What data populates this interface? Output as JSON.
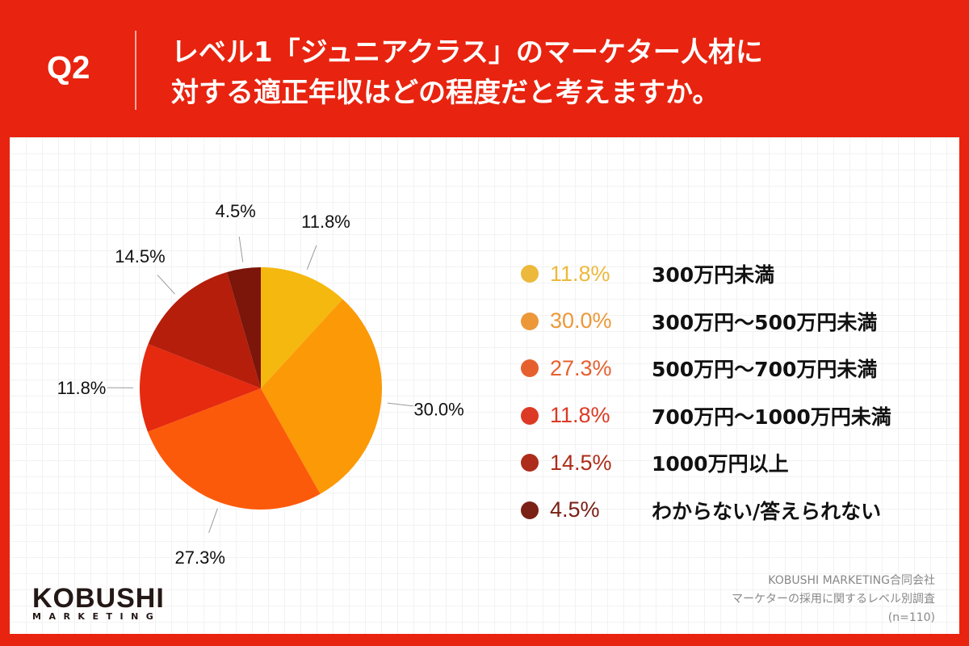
{
  "header": {
    "q": "Q2",
    "title": "レベル1「ジュニアクラス」のマーケター人材に\n対する適正年収はどの程度だと考えますか。"
  },
  "chart_data": {
    "type": "pie",
    "start": "top",
    "direction": "clockwise",
    "categories": [
      "300万円未満",
      "300万円〜500万円未満",
      "500万円〜700万円未満",
      "700万円〜1000万円未満",
      "1000万円以上",
      "わからない/答えられない"
    ],
    "values": [
      11.8,
      30.0,
      27.3,
      11.8,
      14.5,
      4.5
    ],
    "labels": [
      "11.8%",
      "30.0%",
      "27.3%",
      "11.8%",
      "14.5%",
      "4.5%"
    ],
    "colors": [
      "#f5b80f",
      "#fb9906",
      "#fc5a0b",
      "#e52a10",
      "#b51e0b",
      "#7c150a"
    ],
    "legend_colors": [
      "#ecb93c",
      "#ec9838",
      "#e6602f",
      "#dc3a25",
      "#ad2c1a",
      "#7a2015"
    ],
    "legend": "right"
  },
  "logo": {
    "name": "KOBUSHI",
    "sub": "MARKETING"
  },
  "source": [
    "KOBUSHI MARKETING合同会社",
    "マーケターの採用に関するレベル別調査",
    "(n=110)"
  ]
}
